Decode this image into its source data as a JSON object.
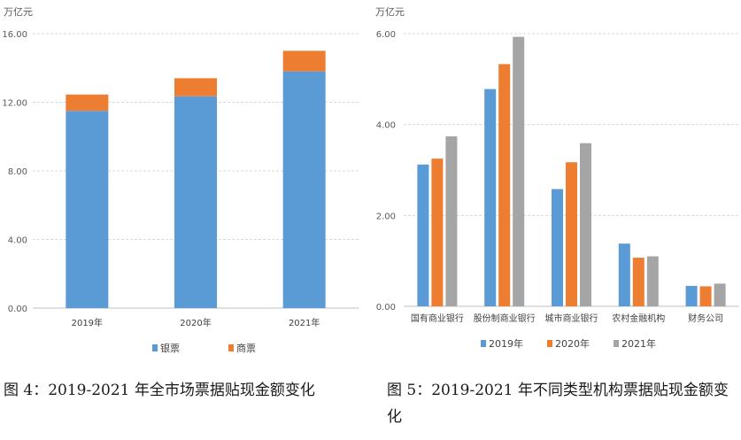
{
  "captions": {
    "left": "图 4：2019-2021 年全市场票据贴现金额变化",
    "right": "图 5：2019-2021 年不同类型机构票据贴现金额变化"
  },
  "chart_data": [
    {
      "type": "bar",
      "stacked": true,
      "unit_label": "万亿元",
      "categories": [
        "2019年",
        "2020年",
        "2021年"
      ],
      "series": [
        {
          "name": "银票",
          "color": "#5b9bd5",
          "values": [
            11.5,
            12.35,
            13.8
          ]
        },
        {
          "name": "商票",
          "color": "#ed7d31",
          "values": [
            0.95,
            1.05,
            1.2
          ]
        }
      ],
      "ylim": [
        0,
        16
      ],
      "yticks": [
        "0.00",
        "4.00",
        "8.00",
        "12.00",
        "16.00"
      ],
      "grid": true,
      "legend": "bottom"
    },
    {
      "type": "bar",
      "stacked": false,
      "unit_label": "万亿元",
      "categories": [
        "国有商业银行",
        "股份制商业银行",
        "城市商业银行",
        "农村金融机构",
        "财务公司"
      ],
      "series": [
        {
          "name": "2019年",
          "color": "#5b9bd5",
          "values": [
            3.12,
            4.78,
            2.58,
            1.38,
            0.45
          ]
        },
        {
          "name": "2020年",
          "color": "#ed7d31",
          "values": [
            3.25,
            5.33,
            3.17,
            1.07,
            0.44
          ]
        },
        {
          "name": "2021年",
          "color": "#a5a5a5",
          "values": [
            3.74,
            5.93,
            3.59,
            1.1,
            0.5
          ]
        }
      ],
      "ylim": [
        0,
        6
      ],
      "yticks": [
        "0.00",
        "2.00",
        "4.00",
        "6.00"
      ],
      "grid": true,
      "legend": "bottom"
    }
  ]
}
